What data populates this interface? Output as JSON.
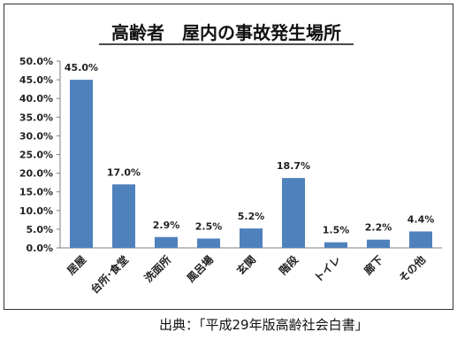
{
  "chart_data": {
    "type": "bar",
    "title": "高齢者　屋内の事故発生場所",
    "categories": [
      "居屋",
      "台所･食堂",
      "洗面所",
      "風呂場",
      "玄関",
      "階段",
      "トイレ",
      "廊下",
      "その他"
    ],
    "values": [
      45.0,
      17.0,
      2.9,
      2.5,
      5.2,
      18.7,
      1.5,
      2.2,
      4.4
    ],
    "value_labels": [
      "45.0%",
      "17.0%",
      "2.9%",
      "2.5%",
      "5.2%",
      "18.7%",
      "1.5%",
      "2.2%",
      "4.4%"
    ],
    "ylim": [
      0,
      50
    ],
    "yticks": [
      0,
      5,
      10,
      15,
      20,
      25,
      30,
      35,
      40,
      45,
      50
    ],
    "ytick_labels": [
      "0.0%",
      "5.0%",
      "10.0%",
      "15.0%",
      "20.0%",
      "25.0%",
      "30.0%",
      "35.0%",
      "40.0%",
      "45.0%",
      "50.0%"
    ],
    "xlabel": "",
    "ylabel": "",
    "grid": false,
    "legend": "none",
    "bar_color": "#4f81bd"
  },
  "source": "出典：「平成29年版高齢社会白書」"
}
